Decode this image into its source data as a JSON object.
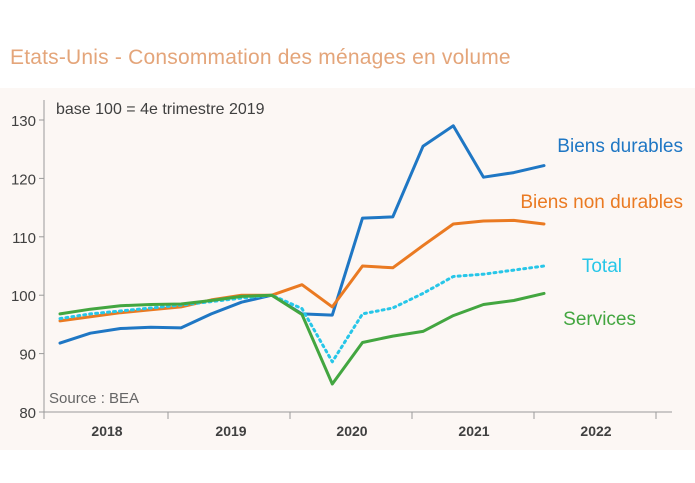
{
  "title": "Etats-Unis - Consommation des ménages en volume",
  "chart_data": {
    "type": "line",
    "subtitle": "base 100 = 4e trimestre 2019",
    "source": "Source : BEA",
    "xlabel": "",
    "ylabel": "",
    "ylim": [
      80,
      130
    ],
    "yticks": [
      80,
      90,
      100,
      110,
      120,
      130
    ],
    "x_year_labels": [
      "2018",
      "2019",
      "2020",
      "2021",
      "2022"
    ],
    "x_quarters": [
      "2018T1",
      "2018T2",
      "2018T3",
      "2018T4",
      "2019T1",
      "2019T2",
      "2019T3",
      "2019T4",
      "2020T1",
      "2020T2",
      "2020T3",
      "2020T4",
      "2021T1",
      "2021T2",
      "2021T3",
      "2021T4",
      "2022T1"
    ],
    "series": [
      {
        "name": "Biens durables",
        "color": "#1f77c4",
        "style": "solid",
        "values": [
          91.8,
          93.5,
          94.3,
          94.5,
          94.4,
          96.8,
          98.8,
          100.0,
          96.8,
          96.6,
          113.2,
          113.4,
          125.5,
          129.0,
          120.2,
          121.0,
          122.2
        ]
      },
      {
        "name": "Biens non durables",
        "color": "#ea7a22",
        "style": "solid",
        "values": [
          95.6,
          96.3,
          97.0,
          97.5,
          98.0,
          99.2,
          100.0,
          100.0,
          101.8,
          98.0,
          105.0,
          104.7,
          108.5,
          112.2,
          112.7,
          112.8,
          112.2
        ]
      },
      {
        "name": "Total",
        "color": "#27c6e8",
        "style": "dotted",
        "values": [
          96.0,
          96.8,
          97.3,
          97.8,
          98.3,
          98.9,
          99.5,
          100.0,
          97.7,
          88.6,
          96.8,
          97.8,
          100.3,
          103.2,
          103.6,
          104.3,
          105.0
        ]
      },
      {
        "name": "Services",
        "color": "#43a640",
        "style": "solid",
        "values": [
          96.8,
          97.6,
          98.2,
          98.4,
          98.5,
          99.1,
          99.8,
          100.0,
          96.7,
          84.8,
          91.9,
          93.0,
          93.8,
          96.5,
          98.4,
          99.1,
          100.3
        ]
      }
    ]
  }
}
